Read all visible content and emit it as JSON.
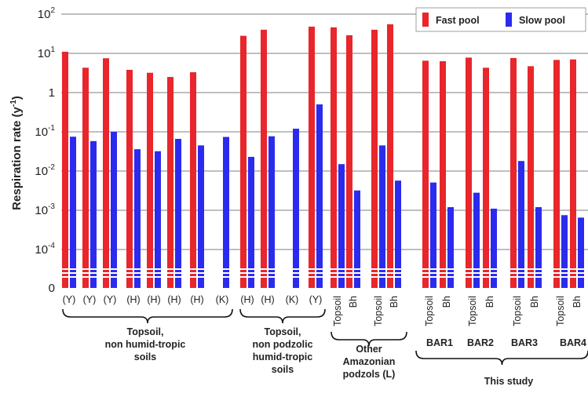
{
  "chart_data": {
    "type": "bar",
    "y_scale": "log",
    "ylabel": "Respiration rate (y",
    "ylabel_sup": "-1",
    "ylabel_end": ")",
    "y_ticks": [
      {
        "value": 100,
        "base": "10",
        "exp": "2"
      },
      {
        "value": 10,
        "base": "10",
        "exp": "1"
      },
      {
        "value": 1,
        "base": "1",
        "exp": ""
      },
      {
        "value": 0.1,
        "base": "10",
        "exp": "-1"
      },
      {
        "value": 0.01,
        "base": "10",
        "exp": "-2"
      },
      {
        "value": 0.001,
        "base": "10",
        "exp": "-3"
      },
      {
        "value": 0.0001,
        "base": "10",
        "exp": "-4"
      },
      {
        "value": 0,
        "base": "0",
        "exp": ""
      }
    ],
    "axis_break": true,
    "grid": true,
    "legend_position": "top-right",
    "colors": {
      "fast": "#e8262b",
      "slow": "#2b2bef"
    },
    "series": [
      {
        "name": "Fast pool",
        "key": "fast"
      },
      {
        "name": "Slow pool",
        "key": "slow"
      }
    ],
    "categories": [
      {
        "label": "(Y)",
        "fast": 11,
        "slow": 0.075
      },
      {
        "label": "(Y)",
        "fast": 4.3,
        "slow": 0.058
      },
      {
        "label": "(Y)",
        "fast": 7.5,
        "slow": 0.1
      },
      {
        "label": "(H)",
        "fast": 3.8,
        "slow": 0.036
      },
      {
        "label": "(H)",
        "fast": 3.2,
        "slow": 0.032
      },
      {
        "label": "(H)",
        "fast": 2.5,
        "slow": 0.066
      },
      {
        "label": "(H)",
        "fast": 3.3,
        "slow": 0.045
      },
      {
        "label": "(K)",
        "fast": null,
        "slow": 0.074
      },
      {
        "label": "(H)",
        "fast": 28,
        "slow": 0.023
      },
      {
        "label": "(H)",
        "fast": 40,
        "slow": 0.077
      },
      {
        "label": "(K)",
        "fast": null,
        "slow": 0.12
      },
      {
        "label": "(Y)",
        "fast": 48,
        "slow": 0.5
      },
      {
        "label": "Topsoil",
        "fast": 46,
        "slow": 0.015
      },
      {
        "label": "Bh",
        "fast": 29,
        "slow": 0.0032
      },
      {
        "label": "Topsoil",
        "fast": 40,
        "slow": 0.045
      },
      {
        "label": "Bh",
        "fast": 55,
        "slow": 0.0057
      },
      {
        "label": "Topsoil",
        "fast": 6.5,
        "slow": 0.0051
      },
      {
        "label": "Bh",
        "fast": 6.3,
        "slow": 0.0012
      },
      {
        "label": "Topsoil",
        "fast": 7.8,
        "slow": 0.0028
      },
      {
        "label": "Bh",
        "fast": 4.3,
        "slow": 0.0011
      },
      {
        "label": "Topsoil",
        "fast": 7.6,
        "slow": 0.018
      },
      {
        "label": "Bh",
        "fast": 4.7,
        "slow": 0.0012
      },
      {
        "label": "Topsoil",
        "fast": 6.8,
        "slow": 0.00075
      },
      {
        "label": "Bh",
        "fast": 7.0,
        "slow": 0.00065
      }
    ],
    "groups": [
      {
        "lines": [
          "Topsoil,",
          "non humid-tropic",
          "soils"
        ]
      },
      {
        "lines": [
          "Topsoil,",
          "non podzolic",
          "humid-tropic",
          "soils"
        ]
      },
      {
        "lines": [
          "Other",
          "Amazonian",
          "podzols (L)"
        ]
      },
      {
        "lines": [
          "This study"
        ]
      }
    ],
    "subgroups": [
      {
        "label": "BAR1"
      },
      {
        "label": "BAR2"
      },
      {
        "label": "BAR3"
      },
      {
        "label": "BAR4"
      }
    ]
  }
}
